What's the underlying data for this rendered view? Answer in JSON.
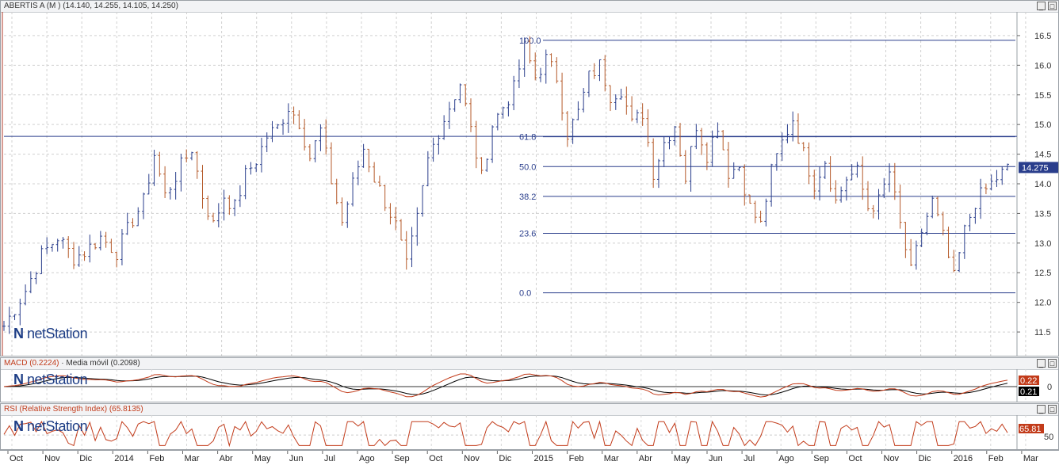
{
  "main_panel": {
    "title": "ABERTIS A (M ) (14.140, 14.255, 14.105, 14.250)",
    "last_price": "14.275",
    "brand": "netStation"
  },
  "macd_panel": {
    "title_macd": "MACD (0.2224)",
    "title_sep": " · ",
    "title_ma": "Media móvil (0.2098)",
    "value_macd": "0.22",
    "value_signal": "0.21",
    "zero_label": "0",
    "brand": "netStation"
  },
  "rsi_panel": {
    "title": "RSI (Relative Strength Index) (65.8135)",
    "value": "65.81",
    "level_label": "50",
    "brand": "netStation"
  },
  "colors": {
    "up_bar": "#2a3e8c",
    "down_bar": "#b55a2a",
    "fib_line": "#2a3e8c",
    "macd_line": "#c23b1a",
    "signal_line": "#000000",
    "rsi_line": "#c23b1a",
    "price_tag": "#2a3e8c"
  },
  "chart_data": {
    "type": "ohlc",
    "title": "ABERTIS A (M )",
    "y_ticks": [
      "11.5",
      "12.0",
      "12.5",
      "13.0",
      "13.5",
      "14.0",
      "14.5",
      "15.0",
      "15.5",
      "16.0",
      "16.5"
    ],
    "ylim": [
      11.1,
      16.9
    ],
    "x_labels": [
      "Oct",
      "Nov",
      "Dic",
      "2014",
      "Feb",
      "Mar",
      "Abr",
      "May",
      "Jun",
      "Jul",
      "Ago",
      "Sep",
      "Oct",
      "Nov",
      "Dic",
      "2015",
      "Feb",
      "Mar",
      "Abr",
      "May",
      "Jun",
      "Jul",
      "Ago",
      "Sep",
      "Oct",
      "Nov",
      "Dic",
      "2016",
      "Feb",
      "Mar"
    ],
    "horizontal_line": 14.8,
    "fibonacci": {
      "high": 16.42,
      "low": 12.16,
      "levels": [
        {
          "label": "100.0",
          "ratio": 1.0
        },
        {
          "label": "61.8",
          "ratio": 0.618
        },
        {
          "label": "50.0",
          "ratio": 0.5
        },
        {
          "label": "38.2",
          "ratio": 0.382
        },
        {
          "label": "23.6",
          "ratio": 0.236
        },
        {
          "label": "0.0",
          "ratio": 0.0
        }
      ]
    },
    "price_path": [
      [
        0,
        11.6
      ],
      [
        4,
        12.2
      ],
      [
        7,
        12.8
      ],
      [
        10,
        13.1
      ],
      [
        13,
        12.75
      ],
      [
        15,
        12.85
      ],
      [
        18,
        13.1
      ],
      [
        21,
        12.85
      ],
      [
        24,
        13.4
      ],
      [
        26,
        13.7
      ],
      [
        28,
        14.5
      ],
      [
        30,
        13.8
      ],
      [
        33,
        14.3
      ],
      [
        35,
        14.6
      ],
      [
        37,
        13.8
      ],
      [
        39,
        13.3
      ],
      [
        41,
        13.8
      ],
      [
        43,
        13.6
      ],
      [
        45,
        14.15
      ],
      [
        47,
        14.4
      ],
      [
        49,
        14.8
      ],
      [
        51,
        14.95
      ],
      [
        53,
        15.3
      ],
      [
        55,
        15.05
      ],
      [
        57,
        14.45
      ],
      [
        59,
        14.9
      ],
      [
        61,
        14.05
      ],
      [
        63,
        13.35
      ],
      [
        65,
        14.0
      ],
      [
        67,
        14.6
      ],
      [
        69,
        14.1
      ],
      [
        71,
        13.7
      ],
      [
        73,
        13.3
      ],
      [
        75,
        12.6
      ],
      [
        77,
        13.4
      ],
      [
        79,
        14.4
      ],
      [
        81,
        14.9
      ],
      [
        83,
        15.3
      ],
      [
        85,
        15.7
      ],
      [
        87,
        14.9
      ],
      [
        89,
        14.1
      ],
      [
        91,
        15.0
      ],
      [
        93,
        15.3
      ],
      [
        95,
        15.6
      ],
      [
        97,
        16.3
      ],
      [
        99,
        15.8
      ],
      [
        101,
        16.1
      ],
      [
        103,
        15.8
      ],
      [
        105,
        14.85
      ],
      [
        107,
        15.2
      ],
      [
        109,
        15.8
      ],
      [
        111,
        16.0
      ],
      [
        113,
        15.5
      ],
      [
        115,
        15.6
      ],
      [
        117,
        15.0
      ],
      [
        119,
        15.2
      ],
      [
        121,
        14.2
      ],
      [
        123,
        14.7
      ],
      [
        125,
        15.0
      ],
      [
        127,
        14.1
      ],
      [
        129,
        15.0
      ],
      [
        131,
        14.5
      ],
      [
        133,
        15.0
      ],
      [
        135,
        14.2
      ],
      [
        137,
        14.3
      ],
      [
        139,
        13.6
      ],
      [
        141,
        13.3
      ],
      [
        143,
        14.2
      ],
      [
        145,
        14.7
      ],
      [
        147,
        15.1
      ],
      [
        149,
        14.5
      ],
      [
        151,
        14.0
      ],
      [
        153,
        14.4
      ],
      [
        155,
        13.7
      ],
      [
        157,
        14.1
      ],
      [
        159,
        14.2
      ],
      [
        161,
        13.6
      ],
      [
        163,
        13.7
      ],
      [
        165,
        14.2
      ],
      [
        167,
        13.3
      ],
      [
        169,
        12.5
      ],
      [
        171,
        13.2
      ],
      [
        173,
        13.7
      ],
      [
        175,
        13.1
      ],
      [
        177,
        12.4
      ],
      [
        179,
        13.2
      ],
      [
        181,
        13.7
      ],
      [
        183,
        13.9
      ],
      [
        185,
        14.1
      ],
      [
        187,
        14.25
      ]
    ],
    "series": [
      {
        "name": "MACD (0.2224)",
        "value": 0.2224
      },
      {
        "name": "Media móvil (0.2098)",
        "value": 0.2098
      },
      {
        "name": "RSI (Relative Strength Index) (65.8135)",
        "value": 65.8135
      }
    ]
  }
}
